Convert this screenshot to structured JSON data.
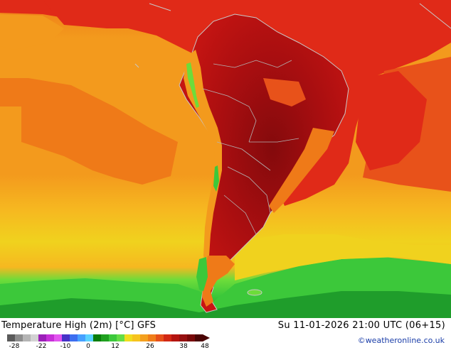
{
  "map": {
    "region": "South America",
    "colors": {
      "ocean_green_dark": "#1f9d2b",
      "ocean_green": "#3cc83a",
      "ocean_green_light": "#6ddc3a",
      "yellow": "#f0d21e",
      "orange_light": "#f6b820",
      "orange": "#f39a1d",
      "orange_dark": "#ef7a18",
      "red_orange": "#e8521a",
      "red": "#e02a18",
      "red_deep": "#c81512",
      "maroon": "#a80e10",
      "maroon_dark": "#840a0c",
      "border": "#b4b4b4",
      "coast": "#c8c8c8"
    }
  },
  "footer": {
    "title": "Temperature High (2m) [°C] GFS",
    "run": "Su 11-01-2026 21:00 UTC (06+15)",
    "credit": "©weatheronline.co.uk",
    "legend_ticks": [
      "-28",
      "-22",
      "-10",
      "0",
      "12",
      "26",
      "38",
      "48"
    ],
    "legend_colors": [
      "#5a5a5a",
      "#8c8c8c",
      "#b4b4b4",
      "#d2d2d2",
      "#9b1fb8",
      "#c62fd8",
      "#e254ef",
      "#4632c8",
      "#3c6ef0",
      "#46a0ff",
      "#5ad2ff",
      "#0a7d0a",
      "#1fa01f",
      "#3cc83c",
      "#64dc46",
      "#f0dc1e",
      "#f6c31e",
      "#f4a01e",
      "#f07d1a",
      "#e6501a",
      "#d22814",
      "#b41410",
      "#961010",
      "#780808",
      "#4a0505"
    ]
  }
}
